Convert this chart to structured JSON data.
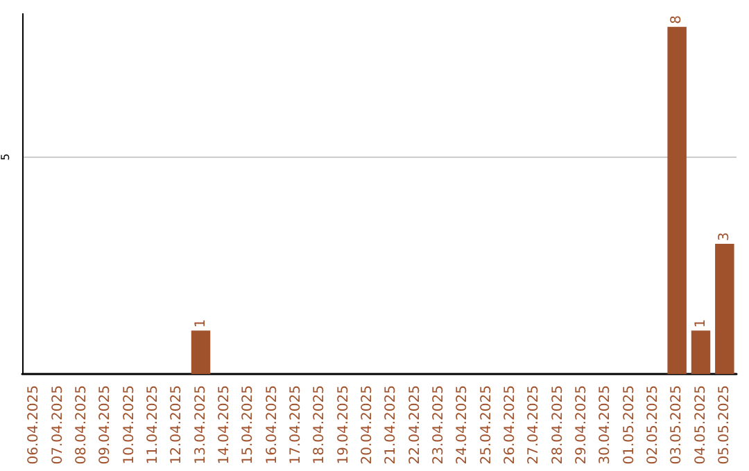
{
  "chart_data": {
    "type": "bar",
    "categories": [
      "06.04.2025",
      "07.04.2025",
      "08.04.2025",
      "09.04.2025",
      "10.04.2025",
      "11.04.2025",
      "12.04.2025",
      "13.04.2025",
      "14.04.2025",
      "15.04.2025",
      "16.04.2025",
      "17.04.2025",
      "18.04.2025",
      "19.04.2025",
      "20.04.2025",
      "21.04.2025",
      "22.04.2025",
      "23.04.2025",
      "24.04.2025",
      "25.04.2025",
      "26.04.2025",
      "27.04.2025",
      "28.04.2025",
      "29.04.2025",
      "30.04.2025",
      "01.05.2025",
      "02.05.2025",
      "03.05.2025",
      "04.05.2025",
      "05.05.2025"
    ],
    "values": [
      0,
      0,
      0,
      0,
      0,
      0,
      0,
      1,
      0,
      0,
      0,
      0,
      0,
      0,
      0,
      0,
      0,
      0,
      0,
      0,
      0,
      0,
      0,
      0,
      0,
      0,
      0,
      8,
      1,
      3
    ],
    "value_labels": [
      null,
      null,
      null,
      null,
      null,
      null,
      null,
      "1",
      null,
      null,
      null,
      null,
      null,
      null,
      null,
      null,
      null,
      null,
      null,
      null,
      null,
      null,
      null,
      null,
      null,
      null,
      null,
      "8",
      "1",
      "3"
    ],
    "color": "#a0522d",
    "ylim": [
      0,
      8.3
    ],
    "yticks": [
      5
    ],
    "grid": "y"
  }
}
